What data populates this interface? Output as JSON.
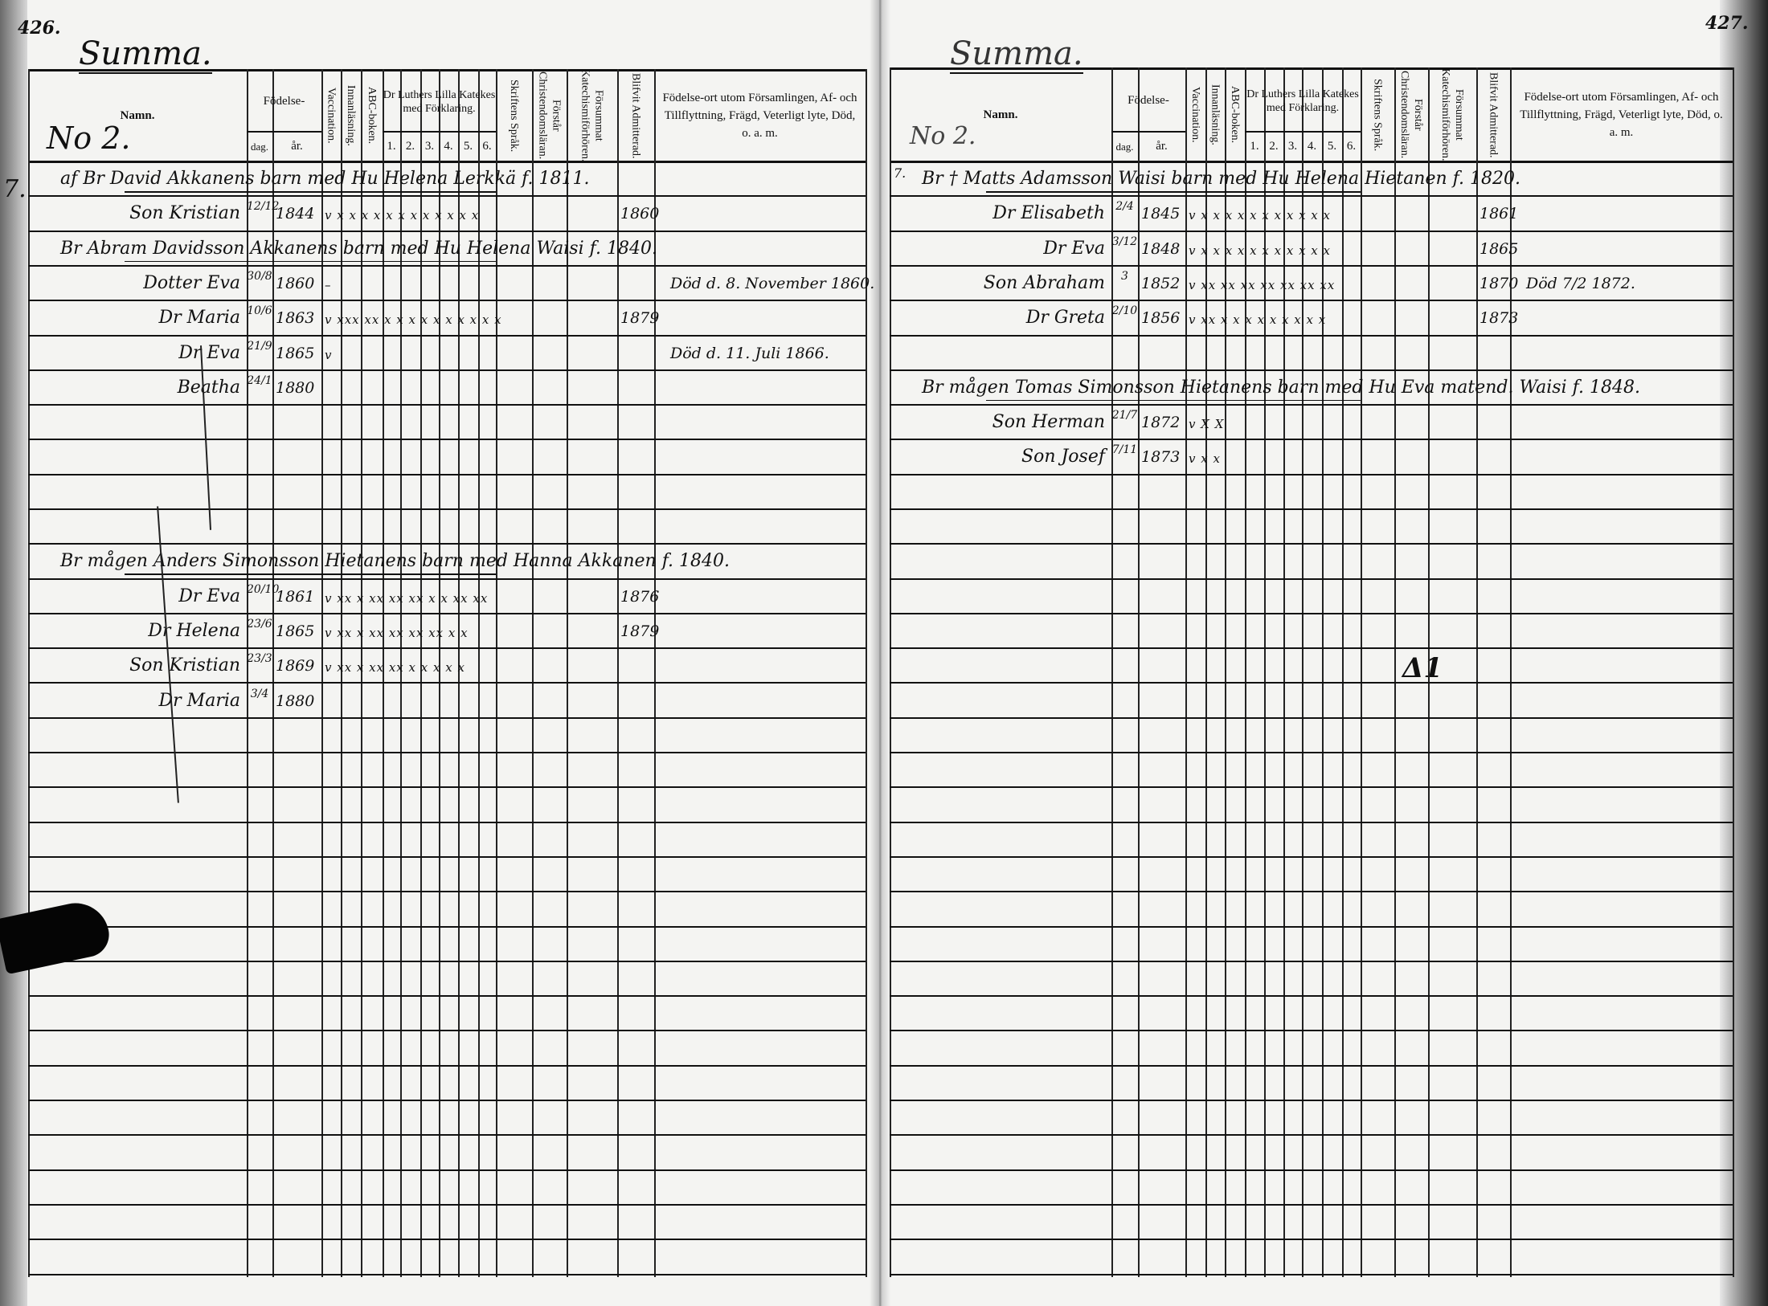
{
  "header": {
    "namn": "Namn.",
    "fodelse": "Födelse-",
    "dag": "dag.",
    "ar": "år.",
    "vaccination": "Vaccination.",
    "innanlasning": "Innanläsning.",
    "abc": "ABC-boken.",
    "katekes": "Dr Luthers Lilla Katekes med Förklaring.",
    "katekes_parts": [
      "1.",
      "2.",
      "3.",
      "4.",
      "5.",
      "6."
    ],
    "skriftens": "Skriftens Språk.",
    "forstar": "Förstår Christendomsläran.",
    "forsummat": "Försummat Katechismiförhören.",
    "admitterad": "Blifvit Admitterad.",
    "fodelseort": "Födelse-ort utom Församlingen, Af- och Tillflyttning, Frägd, Veterligt lyte, Död, o. a. m."
  },
  "left_page": {
    "page_number": "426.",
    "summa": "Summa.",
    "register_no": "No 2.",
    "margin_mark": "7.",
    "entries": [
      {
        "name": "af Br David Akkanens barn med Hu Helena Lerkkä f. 1811.",
        "household": true
      },
      {
        "name": "Son Kristian",
        "dag": "12/12",
        "ar": "1844",
        "marks": "v x x  x x x x x x x x x x",
        "admitted": "1860"
      },
      {
        "name": "Br Abram Davidsson Akkanens barn med Hu Helena Waisi f. 1840.",
        "household": true
      },
      {
        "name": "Dotter Eva",
        "dag": "30/8",
        "ar": "1860",
        "marks": "–",
        "note": "Död d. 8. November 1860."
      },
      {
        "name": "Dr Maria",
        "dag": "10/6",
        "ar": "1863",
        "marks": "v xxx xx x x x x x x x x  x x",
        "admitted": "1879"
      },
      {
        "name": "Dr Eva",
        "dag": "21/9",
        "ar": "1865",
        "marks": "v",
        "note": "Död d. 11. Juli 1866."
      },
      {
        "name": "Beatha",
        "dag": "24/1",
        "ar": "1880"
      },
      {
        "name": "Br mågen Anders Simonsson Hietanens barn med Hanna Akkanen f. 1840.",
        "household": true
      },
      {
        "name": "Dr Eva",
        "dag": "20/10",
        "ar": "1861",
        "marks": "v xx x xx xx xx x x xx xx",
        "admitted": "1876"
      },
      {
        "name": "Dr Helena",
        "dag": "23/6",
        "ar": "1865",
        "marks": "v xx x xx xx xx xx x x",
        "admitted": "1879"
      },
      {
        "name": "Son Kristian",
        "dag": "23/3",
        "ar": "1869",
        "marks": "v xx x xx xx x x x x x"
      },
      {
        "name": "Dr Maria",
        "dag": "3/4",
        "ar": "1880"
      }
    ]
  },
  "right_page": {
    "page_number": "427.",
    "summa": "Summa.",
    "register_no": "No 2.",
    "margin_mark": "7.",
    "entries": [
      {
        "name": "Br † Matts Adamsson Waisi barn med Hu Helena Hietanen f. 1820.",
        "household": true
      },
      {
        "name": "Dr Elisabeth",
        "dag": "2/4",
        "ar": "1845",
        "marks": "v x x x x x x x x x x x",
        "admitted": "1861"
      },
      {
        "name": "Dr Eva",
        "dag": "3/12",
        "ar": "1848",
        "marks": "v x x x x x x x x x x x",
        "admitted": "1865"
      },
      {
        "name": "Son Abraham",
        "dag": "3",
        "ar": "1852",
        "marks": "v xx xx xx xx xx xx xx",
        "admitted": "1870",
        "note": "Död 7/2 1872."
      },
      {
        "name": "Dr Greta",
        "dag": "2/10",
        "ar": "1856",
        "marks": "v xx x x x x x x x x x",
        "admitted": "1873"
      },
      {
        "name": "Br mågen Tomas Simonsson Hietanens barn med Hu Eva matend. Waisi f. 1848.",
        "household": true
      },
      {
        "name": "Son Herman",
        "dag": "21/7",
        "ar": "1872",
        "marks": "v X X"
      },
      {
        "name": "Son Josef",
        "dag": "7/11",
        "ar": "1873",
        "marks": "v x x"
      }
    ],
    "stray_mark": "Δ1"
  }
}
